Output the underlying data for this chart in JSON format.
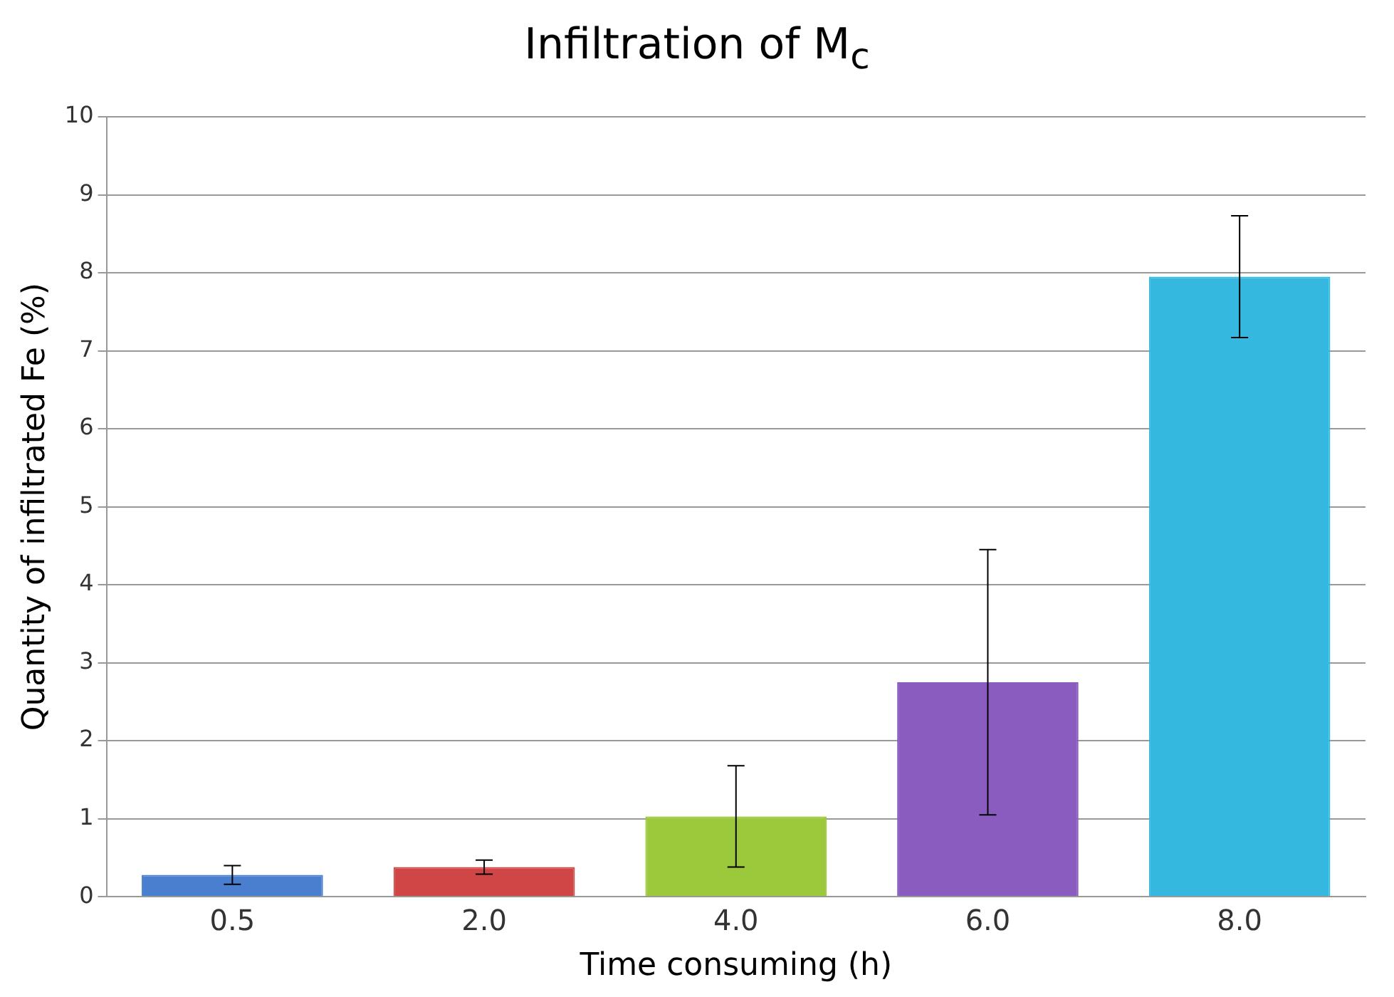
{
  "chart_data": {
    "type": "bar",
    "title": "Infiltration of M$_{c}$",
    "xlabel": "Time consuming (h)",
    "ylabel": "Quantity of infiltrated Fe (%)",
    "categories": [
      "0.5",
      "2.0",
      "4.0",
      "6.0",
      "8.0"
    ],
    "values": [
      0.28,
      0.38,
      1.03,
      2.75,
      7.95
    ],
    "errors": [
      0.12,
      0.09,
      0.65,
      1.7,
      0.78
    ],
    "colors": [
      "#4a7fd0",
      "#d04545",
      "#9cc83c",
      "#8a5cc0",
      "#35b8e0"
    ],
    "ylim": [
      0,
      10
    ],
    "yticks": [
      0,
      1,
      2,
      3,
      4,
      5,
      6,
      7,
      8,
      9,
      10
    ],
    "grid": "y"
  }
}
